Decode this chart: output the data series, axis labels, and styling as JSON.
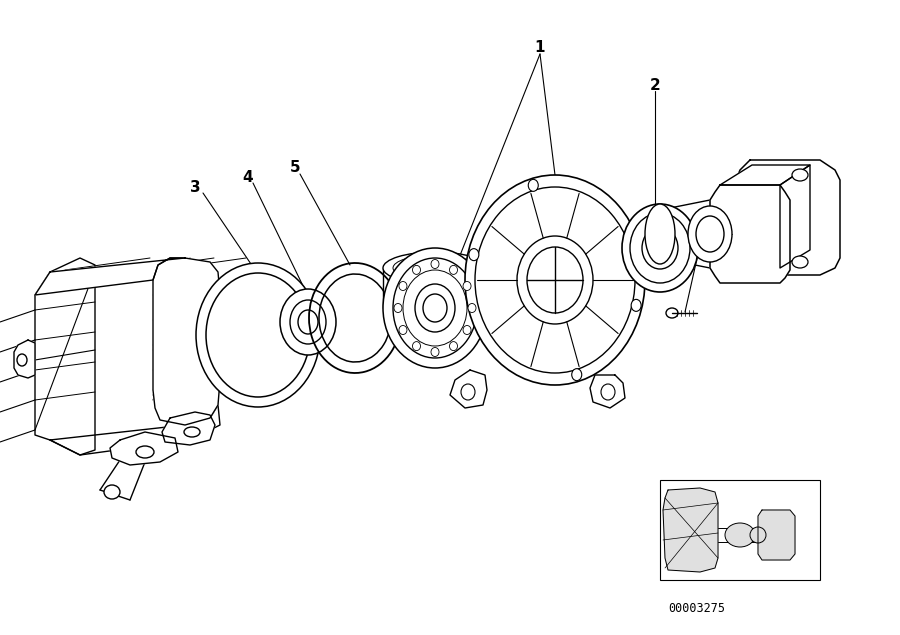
{
  "background_color": "#ffffff",
  "diagram_id": "00003275",
  "fig_width": 9.0,
  "fig_height": 6.35,
  "dpi": 100,
  "line_color": "#000000",
  "lw": 1.0
}
